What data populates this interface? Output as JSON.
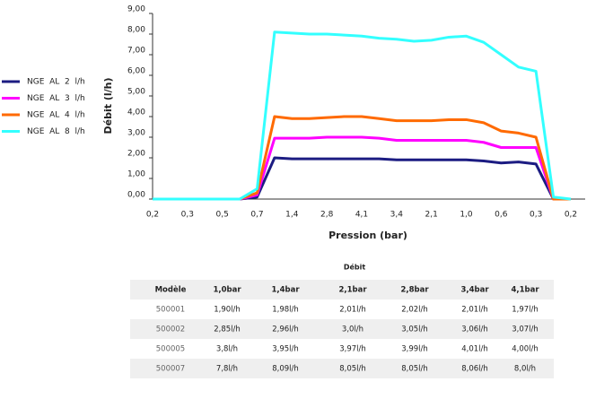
{
  "chart_data": {
    "type": "line",
    "x_label": "Pression (bar)",
    "y_label": "Débit (l/h)",
    "categories": [
      "0,2",
      null,
      "0,3",
      null,
      "0,5",
      null,
      "0,7",
      null,
      "1,4",
      null,
      "2,8",
      null,
      "4,1",
      null,
      "3,4",
      null,
      "2,1",
      null,
      "1,0",
      null,
      "0,6",
      null,
      "0,3",
      null,
      "0,2"
    ],
    "ylim": [
      0,
      9
    ],
    "yticks": [
      {
        "value": 0,
        "label": "0,00"
      },
      {
        "value": 1,
        "label": "1,00"
      },
      {
        "value": 2,
        "label": "2,00"
      },
      {
        "value": 3,
        "label": "3,00"
      },
      {
        "value": 4,
        "label": "4,00"
      },
      {
        "value": 5,
        "label": "5,00"
      },
      {
        "value": 6,
        "label": "6,00"
      },
      {
        "value": 7,
        "label": "7,00"
      },
      {
        "value": 8,
        "label": "8,00"
      },
      {
        "value": 9,
        "label": "9,00"
      }
    ],
    "legend": "left",
    "series": [
      {
        "name": "NGE  AL  2  l/h",
        "color": "#1c1c82",
        "values": [
          0,
          0,
          0,
          0,
          0,
          0,
          0.1,
          2.0,
          1.95,
          1.95,
          1.95,
          1.95,
          1.95,
          1.95,
          1.9,
          1.9,
          1.9,
          1.9,
          1.9,
          1.85,
          1.75,
          1.8,
          1.7,
          0,
          0
        ]
      },
      {
        "name": "NGE  AL  3  l/h",
        "color": "#ff00ff",
        "values": [
          0,
          0,
          0,
          0,
          0,
          0,
          0.2,
          2.95,
          2.95,
          2.95,
          3.0,
          3.0,
          3.0,
          2.95,
          2.85,
          2.85,
          2.85,
          2.85,
          2.85,
          2.75,
          2.5,
          2.5,
          2.5,
          0,
          0
        ]
      },
      {
        "name": "NGE  AL  4  l/h",
        "color": "#ff6a00",
        "values": [
          0,
          0,
          0,
          0,
          0,
          0,
          0.3,
          4.0,
          3.9,
          3.9,
          3.95,
          4.0,
          4.0,
          3.9,
          3.8,
          3.8,
          3.8,
          3.85,
          3.85,
          3.7,
          3.3,
          3.2,
          3.0,
          0,
          0
        ]
      },
      {
        "name": "NGE  AL  8  l/h",
        "color": "#33ffff",
        "values": [
          0,
          0,
          0,
          0,
          0,
          0,
          0.5,
          8.1,
          8.05,
          8.0,
          8.0,
          7.95,
          7.9,
          7.8,
          7.75,
          7.65,
          7.7,
          7.85,
          7.9,
          7.6,
          7.0,
          6.4,
          6.2,
          0.1,
          0
        ]
      }
    ]
  },
  "table": {
    "title": "Débit",
    "header": [
      "Modèle",
      "1,0bar",
      "1,4bar",
      "2,1bar",
      "2,8bar",
      "3,4bar",
      "4,1bar"
    ],
    "rows": [
      [
        "500001",
        "1,90l/h",
        "1,98l/h",
        "2,01l/h",
        "2,02l/h",
        "2,01l/h",
        "1,97l/h"
      ],
      [
        "500002",
        "2,85l/h",
        "2,96l/h",
        "3,0l/h",
        "3,05l/h",
        "3,06l/h",
        "3,07l/h"
      ],
      [
        "500005",
        "3,8l/h",
        "3,95l/h",
        "3,97l/h",
        "3,99l/h",
        "4,01l/h",
        "4,00l/h"
      ],
      [
        "500007",
        "7,8l/h",
        "8,09l/h",
        "8,05l/h",
        "8,05l/h",
        "8,06l/h",
        "8,0l/h"
      ]
    ]
  }
}
